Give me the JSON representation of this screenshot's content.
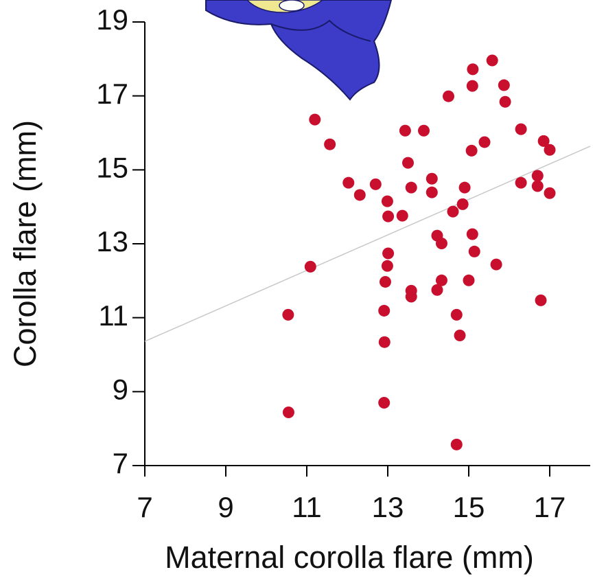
{
  "chart_data": {
    "type": "scatter",
    "xlabel": "Maternal corolla flare (mm)",
    "ylabel": "Corolla flare (mm)",
    "color": "#c8102e",
    "xlim": [
      7,
      18
    ],
    "ylim": [
      7,
      19
    ],
    "xticks": [
      7,
      9,
      11,
      13,
      15,
      17
    ],
    "yticks": [
      7,
      9,
      11,
      13,
      15,
      17,
      19
    ],
    "x": [
      10.54,
      10.55,
      11.09,
      11.2,
      11.57,
      12.03,
      12.31,
      12.7,
      12.91,
      12.92,
      12.91,
      12.94,
      12.99,
      13.01,
      12.99,
      13.01,
      13.36,
      13.43,
      13.5,
      13.58,
      13.58,
      13.58,
      13.89,
      14.09,
      14.09,
      14.22,
      14.22,
      14.33,
      14.33,
      14.5,
      14.61,
      14.7,
      14.78,
      14.7,
      14.85,
      14.9,
      15.0,
      15.07,
      15.09,
      15.14,
      15.09,
      15.1,
      15.39,
      15.58,
      15.68,
      15.87,
      15.9,
      16.29,
      16.29,
      16.7,
      16.7,
      16.78,
      16.85,
      17.0,
      17.0
    ],
    "values": [
      11.08,
      8.44,
      12.38,
      16.36,
      15.69,
      14.65,
      14.32,
      14.61,
      8.7,
      10.34,
      11.19,
      11.97,
      12.4,
      12.74,
      14.15,
      13.74,
      13.76,
      16.06,
      15.19,
      14.52,
      11.73,
      11.57,
      16.06,
      14.76,
      14.39,
      11.75,
      13.22,
      13.01,
      12.01,
      16.99,
      13.87,
      11.08,
      10.52,
      7.57,
      14.07,
      14.52,
      12.01,
      15.52,
      13.26,
      12.79,
      17.27,
      17.72,
      15.75,
      17.96,
      12.44,
      17.29,
      16.84,
      16.1,
      14.65,
      14.84,
      14.56,
      11.47,
      15.78,
      15.54,
      14.37
    ],
    "trendline": {
      "color": "#c8c8c8",
      "x": [
        7,
        18
      ],
      "values": [
        10.36,
        15.64
      ]
    }
  }
}
